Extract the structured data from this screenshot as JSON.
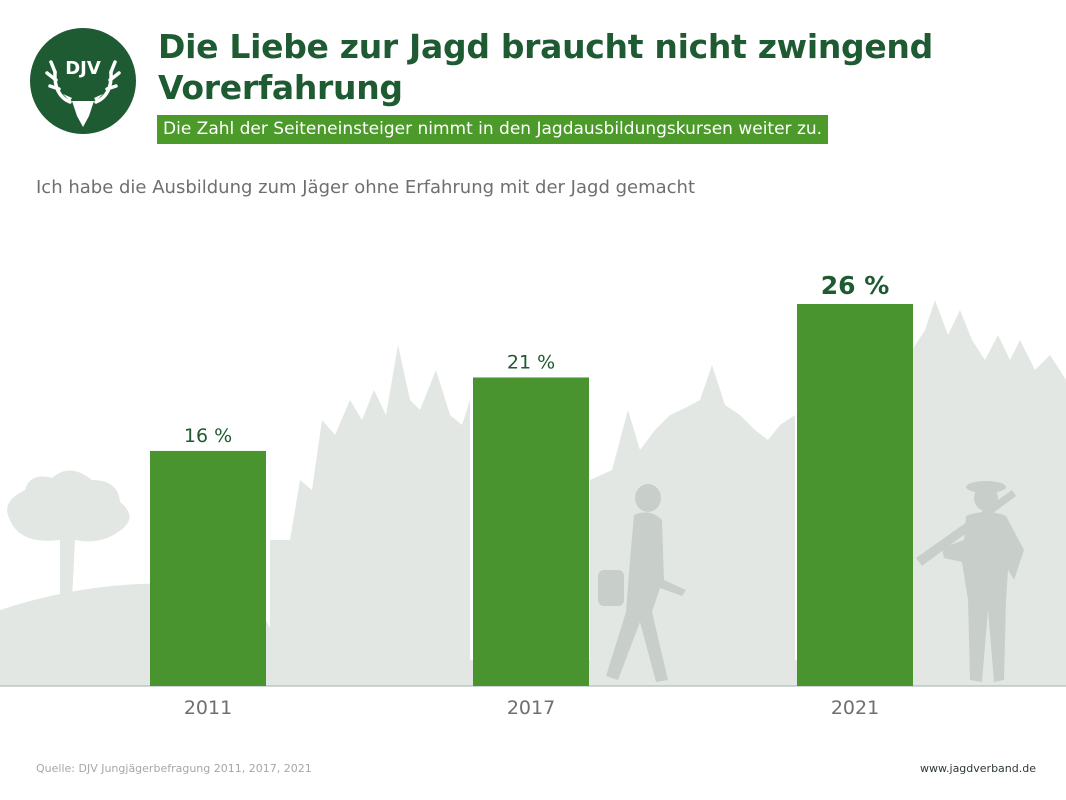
{
  "header": {
    "logo_text": "DJV",
    "title": "Die Liebe zur Jagd braucht nicht zwingend Vorerfahrung",
    "subtitle": "Die Zahl der Seiteneinsteiger nimmt in den Jagdausbildungskursen weiter zu."
  },
  "question": "Ich habe die Ausbildung zum Jäger ohne Erfahrung mit der Jagd gemacht",
  "chart_data": {
    "type": "bar",
    "title": "Ich habe die Ausbildung zum Jäger ohne Erfahrung mit der Jagd gemacht",
    "categories": [
      "2011",
      "2017",
      "2021"
    ],
    "values": [
      16,
      21,
      26
    ],
    "value_labels": [
      "16 %",
      "21 %",
      "26 %"
    ],
    "highlight_index": 2,
    "unit": "%",
    "xlabel": "",
    "ylabel": "",
    "ylim": [
      0,
      26
    ],
    "grid": false,
    "legend": "none"
  },
  "footer": {
    "source": "Quelle: DJV Jungjägerbefragung 2011, 2017, 2021",
    "url": "www.jagdverband.de"
  },
  "colors": {
    "bar": "#4a9430",
    "dark_green": "#1e5a32",
    "badge_green": "#4c9a2a",
    "silhouette": "#e2e7e3"
  },
  "icons": {
    "logo": "djv-deer-logo-icon",
    "background": "forest-and-hunters-silhouette"
  }
}
